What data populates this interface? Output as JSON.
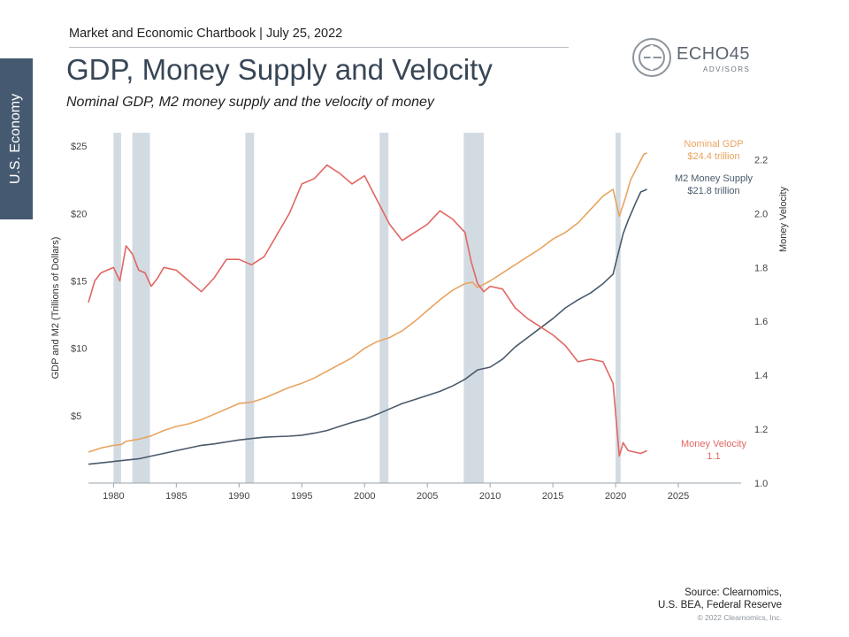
{
  "header": {
    "chartbook": "Market and Economic Chartbook | July 25, 2022",
    "title": "GDP, Money Supply and Velocity",
    "subtitle": "Nominal GDP, M2 money supply and the velocity of money"
  },
  "side_tab": "U.S. Economy",
  "logo": {
    "name": "ECHO45",
    "sub": "ADVISORS",
    "icon": "echo45-ring-logo"
  },
  "footer": {
    "source_line1": "Source: Clearnomics,",
    "source_line2": "U.S. BEA, Federal Reserve",
    "copyright": "© 2022 Clearnomics, Inc."
  },
  "colors": {
    "gdp": "#e8a460",
    "m2": "#4a5a6c",
    "velocity": "#e06763",
    "recession": "#d3dbe2"
  },
  "chart_data": {
    "type": "line",
    "ylabel_left": "GDP and M2 (Trillions of Dollars)",
    "ylabel_right": "Money Velocity",
    "xlim": [
      1978,
      2030
    ],
    "ylim_left": [
      0,
      26
    ],
    "ylim_right": [
      1.0,
      2.3
    ],
    "x_ticks": [
      1980,
      1985,
      1990,
      1995,
      2000,
      2005,
      2010,
      2015,
      2020,
      2025
    ],
    "y_left_ticks": [
      {
        "value": 5,
        "label": "$5"
      },
      {
        "value": 10,
        "label": "$10"
      },
      {
        "value": 15,
        "label": "$15"
      },
      {
        "value": 20,
        "label": "$20"
      },
      {
        "value": 25,
        "label": "$25"
      }
    ],
    "y_right_ticks": [
      {
        "value": 1.0,
        "label": "1.0"
      },
      {
        "value": 1.2,
        "label": "1.2"
      },
      {
        "value": 1.4,
        "label": "1.4"
      },
      {
        "value": 1.6,
        "label": "1.6"
      },
      {
        "value": 1.8,
        "label": "1.8"
      },
      {
        "value": 2.0,
        "label": "2.0"
      },
      {
        "value": 2.2,
        "label": "2.2"
      }
    ],
    "recessions": [
      [
        1980.0,
        1980.6
      ],
      [
        1981.5,
        1982.9
      ],
      [
        1990.5,
        1991.2
      ],
      [
        2001.2,
        2001.9
      ],
      [
        2007.9,
        2009.5
      ],
      [
        2020.0,
        2020.4
      ]
    ],
    "series": [
      {
        "name": "Nominal GDP",
        "axis": "left",
        "label_lines": [
          "Nominal GDP",
          "$24.4 trillion"
        ],
        "points": [
          [
            1978,
            2.3
          ],
          [
            1979,
            2.6
          ],
          [
            1980,
            2.8
          ],
          [
            1980.6,
            2.85
          ],
          [
            1981,
            3.1
          ],
          [
            1982,
            3.25
          ],
          [
            1983,
            3.5
          ],
          [
            1984,
            3.9
          ],
          [
            1985,
            4.2
          ],
          [
            1986,
            4.4
          ],
          [
            1987,
            4.7
          ],
          [
            1988,
            5.1
          ],
          [
            1989,
            5.5
          ],
          [
            1990,
            5.9
          ],
          [
            1991,
            6.0
          ],
          [
            1992,
            6.3
          ],
          [
            1993,
            6.7
          ],
          [
            1994,
            7.1
          ],
          [
            1995,
            7.4
          ],
          [
            1996,
            7.8
          ],
          [
            1997,
            8.3
          ],
          [
            1998,
            8.8
          ],
          [
            1999,
            9.3
          ],
          [
            2000,
            10.0
          ],
          [
            2001,
            10.5
          ],
          [
            2002,
            10.8
          ],
          [
            2003,
            11.3
          ],
          [
            2004,
            12.0
          ],
          [
            2005,
            12.8
          ],
          [
            2006,
            13.6
          ],
          [
            2007,
            14.3
          ],
          [
            2008,
            14.8
          ],
          [
            2008.6,
            14.9
          ],
          [
            2009,
            14.5
          ],
          [
            2010,
            15.0
          ],
          [
            2011,
            15.6
          ],
          [
            2012,
            16.2
          ],
          [
            2013,
            16.8
          ],
          [
            2014,
            17.4
          ],
          [
            2015,
            18.1
          ],
          [
            2016,
            18.6
          ],
          [
            2017,
            19.3
          ],
          [
            2018,
            20.3
          ],
          [
            2019,
            21.3
          ],
          [
            2019.8,
            21.8
          ],
          [
            2020.3,
            19.8
          ],
          [
            2020.8,
            21.2
          ],
          [
            2021.2,
            22.5
          ],
          [
            2021.8,
            23.6
          ],
          [
            2022.25,
            24.4
          ],
          [
            2022.5,
            24.5
          ]
        ]
      },
      {
        "name": "M2 Money Supply",
        "axis": "left",
        "label_lines": [
          "M2 Money Supply",
          "$21.8 trillion"
        ],
        "points": [
          [
            1978,
            1.4
          ],
          [
            1979,
            1.5
          ],
          [
            1980,
            1.6
          ],
          [
            1981,
            1.7
          ],
          [
            1982,
            1.8
          ],
          [
            1983,
            2.0
          ],
          [
            1984,
            2.2
          ],
          [
            1985,
            2.4
          ],
          [
            1986,
            2.6
          ],
          [
            1987,
            2.8
          ],
          [
            1988,
            2.9
          ],
          [
            1989,
            3.05
          ],
          [
            1990,
            3.2
          ],
          [
            1991,
            3.3
          ],
          [
            1992,
            3.4
          ],
          [
            1993,
            3.45
          ],
          [
            1994,
            3.48
          ],
          [
            1995,
            3.55
          ],
          [
            1996,
            3.7
          ],
          [
            1997,
            3.9
          ],
          [
            1998,
            4.2
          ],
          [
            1999,
            4.5
          ],
          [
            2000,
            4.75
          ],
          [
            2001,
            5.1
          ],
          [
            2002,
            5.5
          ],
          [
            2003,
            5.9
          ],
          [
            2004,
            6.2
          ],
          [
            2005,
            6.5
          ],
          [
            2006,
            6.8
          ],
          [
            2007,
            7.2
          ],
          [
            2008,
            7.7
          ],
          [
            2009,
            8.4
          ],
          [
            2010,
            8.6
          ],
          [
            2011,
            9.2
          ],
          [
            2012,
            10.1
          ],
          [
            2013,
            10.8
          ],
          [
            2014,
            11.5
          ],
          [
            2015,
            12.2
          ],
          [
            2016,
            13.0
          ],
          [
            2017,
            13.6
          ],
          [
            2018,
            14.1
          ],
          [
            2019,
            14.8
          ],
          [
            2019.8,
            15.5
          ],
          [
            2020.2,
            17.0
          ],
          [
            2020.6,
            18.5
          ],
          [
            2021,
            19.5
          ],
          [
            2021.6,
            20.8
          ],
          [
            2022.0,
            21.6
          ],
          [
            2022.5,
            21.8
          ]
        ]
      },
      {
        "name": "Money Velocity",
        "axis": "right",
        "label_lines": [
          "Money Velocity",
          "1.1"
        ],
        "points": [
          [
            1978,
            1.67
          ],
          [
            1978.5,
            1.75
          ],
          [
            1979,
            1.78
          ],
          [
            1980,
            1.8
          ],
          [
            1980.5,
            1.75
          ],
          [
            1981,
            1.88
          ],
          [
            1981.5,
            1.85
          ],
          [
            1982,
            1.79
          ],
          [
            1982.5,
            1.78
          ],
          [
            1983,
            1.73
          ],
          [
            1983.5,
            1.76
          ],
          [
            1984,
            1.8
          ],
          [
            1985,
            1.79
          ],
          [
            1986,
            1.75
          ],
          [
            1987,
            1.71
          ],
          [
            1988,
            1.76
          ],
          [
            1989,
            1.83
          ],
          [
            1990,
            1.83
          ],
          [
            1991,
            1.81
          ],
          [
            1992,
            1.84
          ],
          [
            1993,
            1.92
          ],
          [
            1994,
            2.0
          ],
          [
            1995,
            2.11
          ],
          [
            1996,
            2.13
          ],
          [
            1997,
            2.18
          ],
          [
            1998,
            2.15
          ],
          [
            1999,
            2.11
          ],
          [
            2000,
            2.14
          ],
          [
            2001,
            2.05
          ],
          [
            2002,
            1.96
          ],
          [
            2003,
            1.9
          ],
          [
            2004,
            1.93
          ],
          [
            2005,
            1.96
          ],
          [
            2006,
            2.01
          ],
          [
            2007,
            1.98
          ],
          [
            2008,
            1.93
          ],
          [
            2008.5,
            1.82
          ],
          [
            2009,
            1.74
          ],
          [
            2009.5,
            1.71
          ],
          [
            2010,
            1.73
          ],
          [
            2011,
            1.72
          ],
          [
            2012,
            1.65
          ],
          [
            2013,
            1.61
          ],
          [
            2014,
            1.58
          ],
          [
            2015,
            1.55
          ],
          [
            2016,
            1.51
          ],
          [
            2017,
            1.45
          ],
          [
            2018,
            1.46
          ],
          [
            2019,
            1.45
          ],
          [
            2019.8,
            1.37
          ],
          [
            2020.3,
            1.1
          ],
          [
            2020.6,
            1.15
          ],
          [
            2021,
            1.12
          ],
          [
            2022,
            1.11
          ],
          [
            2022.5,
            1.12
          ]
        ]
      }
    ]
  }
}
